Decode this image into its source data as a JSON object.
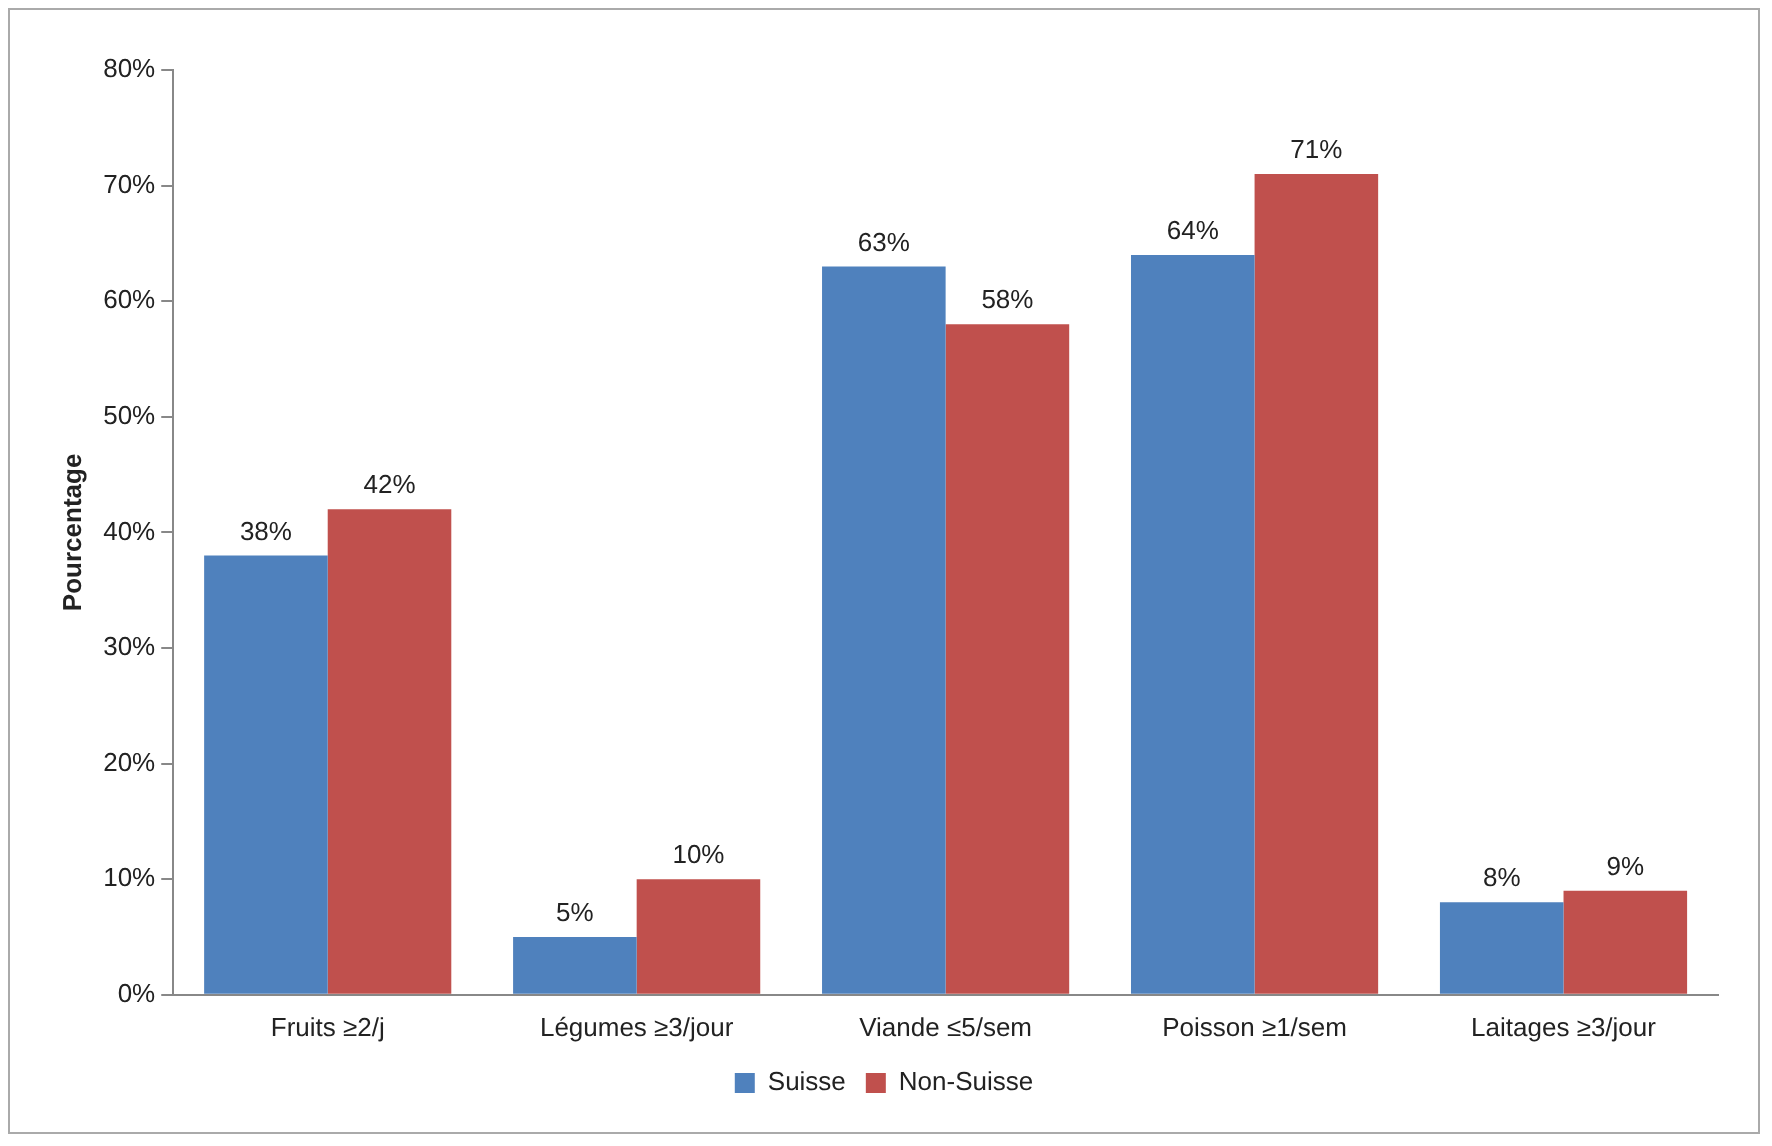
{
  "chart_data": {
    "type": "bar",
    "ylabel": "Pourcentage",
    "categories": [
      "Fruits ≥2/j",
      "Légumes ≥3/jour",
      "Viande ≤5/sem",
      "Poisson ≥1/sem",
      "Laitages ≥3/jour"
    ],
    "series": [
      {
        "name": "Suisse",
        "color": "#4f81bd",
        "values": [
          38,
          5,
          63,
          64,
          8
        ],
        "value_labels": [
          "38%",
          "5%",
          "63%",
          "64%",
          "8%"
        ]
      },
      {
        "name": "Non-Suisse",
        "color": "#c0504d",
        "values": [
          42,
          10,
          58,
          71,
          9
        ],
        "value_labels": [
          "42%",
          "10%",
          "58%",
          "71%",
          "9%"
        ]
      }
    ],
    "ylim": [
      0,
      80
    ],
    "yticks": [
      {
        "value": 0,
        "label": "0%"
      },
      {
        "value": 10,
        "label": "10%"
      },
      {
        "value": 20,
        "label": "20%"
      },
      {
        "value": 30,
        "label": "30%"
      },
      {
        "value": 40,
        "label": "40%"
      },
      {
        "value": 50,
        "label": "50%"
      },
      {
        "value": 60,
        "label": "60%"
      },
      {
        "value": 70,
        "label": "70%"
      },
      {
        "value": 80,
        "label": "80%"
      }
    ],
    "grid": false,
    "legend": "bottom"
  }
}
